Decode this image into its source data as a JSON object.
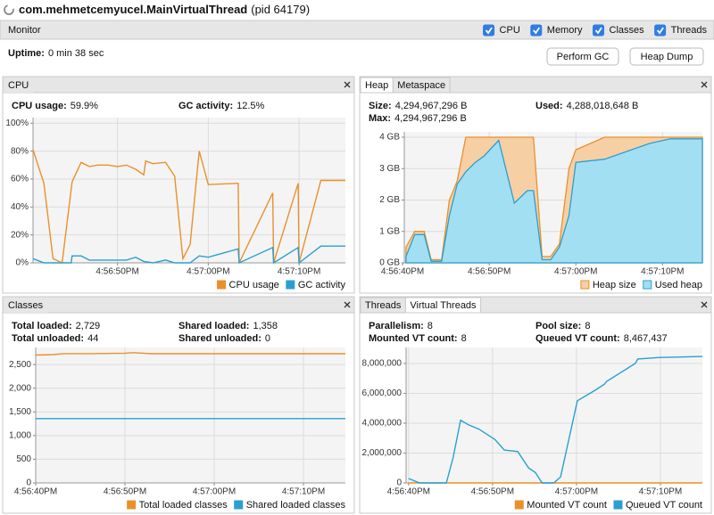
{
  "window": {
    "name": "com.mehmetcemyucel.MainVirtualThread",
    "pid": "(pid 64179)"
  },
  "toolbar": {
    "tab": "Monitor",
    "checkboxes": [
      {
        "label": "CPU",
        "checked": true
      },
      {
        "label": "Memory",
        "checked": true
      },
      {
        "label": "Classes",
        "checked": true
      },
      {
        "label": "Threads",
        "checked": true
      }
    ]
  },
  "uptime": {
    "label": "Uptime:",
    "value": "0 min 38 sec"
  },
  "buttons": [
    "Perform GC",
    "Heap Dump"
  ],
  "panels": [
    {
      "tabs": [
        {
          "label": "CPU",
          "selected": true
        }
      ],
      "stats": {
        "columns": [
          [
            {
              "label": "CPU usage:",
              "value": "59.9%"
            }
          ],
          [
            {
              "label": "GC activity:",
              "value": "12.5%"
            }
          ]
        ]
      }
    },
    {
      "tabs": [
        {
          "label": "Heap",
          "selected": true
        },
        {
          "label": "Metaspace",
          "selected": false
        }
      ],
      "stats": {
        "columns": [
          [
            {
              "label": "Size:",
              "value": "4,294,967,296 B"
            },
            {
              "label": "Max:",
              "value": "4,294,967,296 B"
            }
          ],
          [
            {
              "label": "Used:",
              "value": "4,288,018,648 B"
            }
          ]
        ]
      }
    },
    {
      "tabs": [
        {
          "label": "Classes",
          "selected": true
        }
      ],
      "stats": {
        "columns": [
          [
            {
              "label": "Total loaded:",
              "value": "2,729"
            },
            {
              "label": "Total unloaded:",
              "value": "44"
            }
          ],
          [
            {
              "label": "Shared loaded:",
              "value": "1,358"
            },
            {
              "label": "Shared unloaded:",
              "value": "0"
            }
          ]
        ]
      }
    },
    {
      "tabs": [
        {
          "label": "Threads",
          "selected": false
        },
        {
          "label": "Virtual Threads",
          "selected": true
        }
      ],
      "stats": {
        "columns": [
          [
            {
              "label": "Parallelism:",
              "value": "8"
            },
            {
              "label": "Mounted VT count:",
              "value": "8"
            }
          ],
          [
            {
              "label": "Pool size:",
              "value": "8"
            },
            {
              "label": "Queued VT count:",
              "value": "8,467,437"
            }
          ]
        ]
      }
    }
  ],
  "chart_data": [
    {
      "type": "line",
      "grid": true,
      "x": [
        0.7,
        1.9,
        2.9,
        3.9,
        5.0,
        6.0,
        6.9,
        7.8,
        9.0,
        10,
        11.0,
        12.0,
        12.9,
        13.1,
        13.9,
        15.3,
        16.3,
        17.2,
        18.0,
        19.0,
        20,
        23.3,
        23.4,
        27.1,
        27.2,
        29.9,
        30,
        32.4,
        35.1
      ],
      "xlim": [
        0.7,
        35.1
      ],
      "xticks": [
        {
          "value": 10,
          "label": "4:56:50PM"
        },
        {
          "value": 20,
          "label": "4:57:00PM"
        },
        {
          "value": 30,
          "label": "4:57:10PM"
        }
      ],
      "ylim": [
        0,
        104
      ],
      "yticks": [
        {
          "value": 0,
          "label": "0%"
        },
        {
          "value": 20,
          "label": "20%"
        },
        {
          "value": 40,
          "label": "40%"
        },
        {
          "value": 60,
          "label": "60%"
        },
        {
          "value": 80,
          "label": "80%"
        },
        {
          "value": 100,
          "label": "100%"
        }
      ],
      "series": [
        {
          "name": "CPU usage",
          "color": "#e8912a",
          "values": [
            81,
            57,
            3,
            0,
            58,
            72,
            69,
            70,
            70,
            69,
            70,
            67,
            63,
            73,
            71,
            72,
            62,
            3,
            13,
            80,
            56,
            57,
            0,
            50,
            0,
            57,
            0,
            59,
            59
          ]
        },
        {
          "name": "GC activity",
          "color": "#2a9fd0",
          "x": [
            0.7,
            1.9,
            4.9,
            5.0,
            6.0,
            6.9,
            11.0,
            12.0,
            12.9,
            13.9,
            15.3,
            16.3,
            18.0,
            19.0,
            20,
            23.3,
            23.4,
            27.1,
            27.2,
            29.9,
            30,
            32.4,
            35.1
          ],
          "values": [
            3,
            0,
            0,
            5,
            5,
            2,
            2,
            4,
            1,
            0,
            2,
            0,
            0,
            5,
            4,
            10,
            0,
            11,
            0,
            11,
            0,
            12,
            12
          ]
        }
      ]
    },
    {
      "type": "area",
      "grid": true,
      "xlim": [
        0.2,
        34.6
      ],
      "xticks": [
        {
          "value": 0,
          "label": "4:56:40PM"
        },
        {
          "value": 10,
          "label": "4:56:50PM"
        },
        {
          "value": 20,
          "label": "4:57:00PM"
        },
        {
          "value": 30,
          "label": "4:57:10PM"
        }
      ],
      "ylim": [
        0,
        4.17
      ],
      "yticks": [
        {
          "value": 0,
          "label": "0 GB"
        },
        {
          "value": 1,
          "label": "1 GB"
        },
        {
          "value": 2,
          "label": "2 GB"
        },
        {
          "value": 3,
          "label": "3 GB"
        },
        {
          "value": 4,
          "label": "4 GB"
        }
      ],
      "series": [
        {
          "name": "Heap size",
          "color": "#e8912a",
          "fill": "#f7cfa5",
          "x": [
            0.4,
            1.4,
            2.5,
            3.3,
            4.5,
            5.4,
            6.3,
            7.3,
            15.1,
            16.1,
            17.1,
            18.1,
            19.2,
            20.0,
            23.3,
            34.6
          ],
          "values": [
            0.5,
            1.0,
            1.0,
            0.1,
            0.1,
            2.0,
            2.6,
            4.0,
            4.0,
            0.2,
            0.2,
            0.6,
            3.0,
            3.6,
            4.0,
            4.0
          ]
        },
        {
          "name": "Used heap",
          "color": "#2a9fd0",
          "fill": "#a3dff2",
          "x": [
            0.4,
            1.4,
            2.5,
            3.3,
            4.5,
            5.4,
            6.3,
            7.3,
            8.4,
            9.4,
            11.1,
            12.9,
            14.4,
            15.1,
            16.1,
            17.1,
            18.1,
            19.2,
            20.0,
            23.3,
            28.5,
            30.9,
            34.6
          ],
          "values": [
            0.2,
            0.9,
            0.9,
            0.05,
            0.05,
            1.5,
            2.5,
            2.9,
            3.2,
            3.4,
            3.9,
            1.9,
            2.3,
            2.3,
            0.1,
            0.1,
            0.5,
            1.5,
            3.2,
            3.3,
            3.8,
            3.95,
            3.95
          ]
        }
      ]
    },
    {
      "type": "line",
      "grid": true,
      "xlim": [
        0,
        34.7
      ],
      "xticks": [
        {
          "value": 0,
          "label": "4:56:40PM"
        },
        {
          "value": 10,
          "label": "4:56:50PM"
        },
        {
          "value": 20,
          "label": "4:57:00PM"
        },
        {
          "value": 30,
          "label": "4:57:10PM"
        }
      ],
      "ylim": [
        0,
        2860
      ],
      "yticks": [
        0,
        500,
        {
          "value": 1000,
          "label": "1,000"
        },
        {
          "value": 1500,
          "label": "1,500"
        },
        {
          "value": 2000,
          "label": "2,000"
        },
        {
          "value": 2500,
          "label": "2,500"
        }
      ],
      "series": [
        {
          "name": "Total loaded classes",
          "color": "#e8912a",
          "x": [
            0,
            2,
            3,
            6,
            10,
            11,
            12,
            13,
            34.7
          ],
          "values": [
            2700,
            2710,
            2730,
            2730,
            2740,
            2750,
            2740,
            2729,
            2729
          ]
        },
        {
          "name": "Shared loaded classes",
          "color": "#2a9fd0",
          "x": [
            0,
            34.7
          ],
          "values": [
            1358,
            1358
          ]
        }
      ]
    },
    {
      "type": "line",
      "grid": true,
      "xlim": [
        -0.3,
        35.0
      ],
      "xticks": [
        {
          "value": 0,
          "label": "4:56:40PM"
        },
        {
          "value": 10,
          "label": "4:56:50PM"
        },
        {
          "value": 20,
          "label": "4:57:00PM"
        },
        {
          "value": 30,
          "label": "4:57:10PM"
        }
      ],
      "ylim": [
        0,
        9070000
      ],
      "yticks": [
        0,
        {
          "value": 2000000,
          "label": "2,000,000"
        },
        {
          "value": 4000000,
          "label": "4,000,000"
        },
        {
          "value": 6000000,
          "label": "6,000,000"
        },
        {
          "value": 8000000,
          "label": "8,000,000"
        }
      ],
      "series": [
        {
          "name": "Mounted VT count",
          "color": "#e8912a",
          "x": [
            0,
            35.0
          ],
          "values": [
            8,
            8
          ]
        },
        {
          "name": "Queued VT count",
          "color": "#2a9fd0",
          "x": [
            0,
            1.3,
            4.5,
            5.3,
            6.2,
            7.1,
            8.4,
            10.3,
            11.4,
            13.0,
            14.3,
            15.1,
            15.9,
            17.3,
            18.1,
            20.1,
            22.2,
            23.3,
            23.6,
            27.0,
            27.3,
            29.9,
            35.0
          ],
          "values": [
            300000,
            0,
            0,
            1700000,
            4200000,
            3900000,
            3600000,
            2900000,
            2200000,
            2100000,
            1000000,
            700000,
            0,
            0,
            400000,
            5500000,
            6200000,
            6600000,
            6800000,
            8000000,
            8300000,
            8400000,
            8467437
          ]
        }
      ]
    }
  ]
}
